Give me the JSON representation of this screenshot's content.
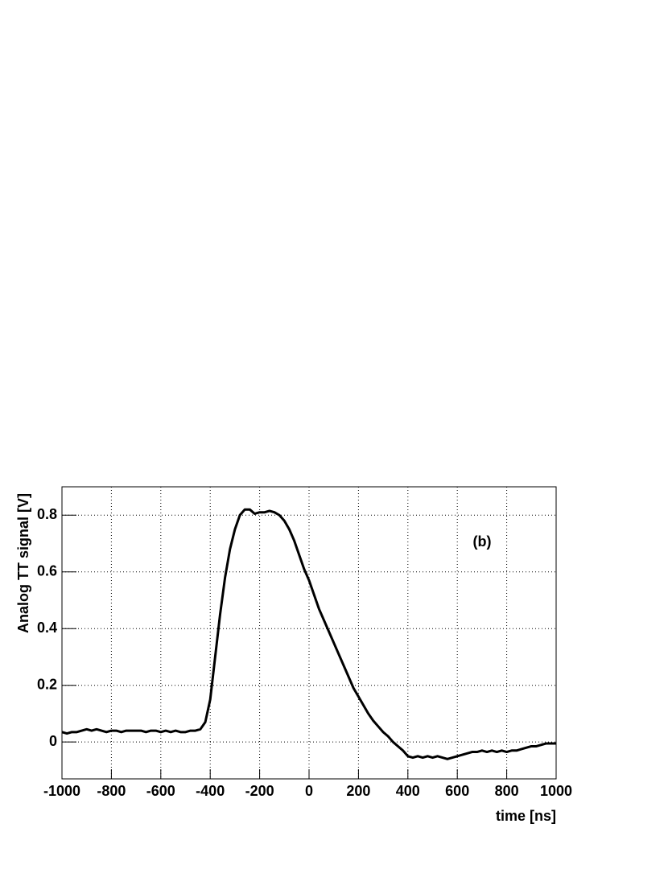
{
  "chart_data": {
    "type": "line",
    "xlabel": "time [ns]",
    "ylabel": "Analog TT signal [V]",
    "annotation": "(b)",
    "x": [
      -1000,
      -980,
      -960,
      -940,
      -920,
      -900,
      -880,
      -860,
      -840,
      -820,
      -800,
      -780,
      -760,
      -740,
      -720,
      -700,
      -680,
      -660,
      -640,
      -620,
      -600,
      -580,
      -560,
      -540,
      -520,
      -500,
      -480,
      -460,
      -440,
      -420,
      -400,
      -380,
      -360,
      -340,
      -320,
      -300,
      -280,
      -260,
      -240,
      -220,
      -200,
      -180,
      -160,
      -140,
      -120,
      -100,
      -80,
      -60,
      -40,
      -20,
      0,
      20,
      40,
      60,
      80,
      100,
      120,
      140,
      160,
      180,
      200,
      220,
      240,
      260,
      280,
      300,
      320,
      340,
      360,
      380,
      400,
      420,
      440,
      460,
      480,
      500,
      520,
      540,
      560,
      580,
      600,
      620,
      640,
      660,
      680,
      700,
      720,
      740,
      760,
      780,
      800,
      820,
      840,
      860,
      880,
      900,
      920,
      940,
      960,
      980,
      1000
    ],
    "series": [
      {
        "color": "#000000",
        "values": [
          0.035,
          0.03,
          0.035,
          0.035,
          0.04,
          0.045,
          0.04,
          0.045,
          0.04,
          0.035,
          0.04,
          0.04,
          0.035,
          0.04,
          0.04,
          0.04,
          0.04,
          0.035,
          0.04,
          0.04,
          0.035,
          0.04,
          0.035,
          0.04,
          0.035,
          0.035,
          0.04,
          0.04,
          0.045,
          0.07,
          0.15,
          0.3,
          0.45,
          0.58,
          0.68,
          0.75,
          0.8,
          0.82,
          0.82,
          0.805,
          0.81,
          0.81,
          0.815,
          0.81,
          0.8,
          0.78,
          0.75,
          0.71,
          0.66,
          0.61,
          0.57,
          0.52,
          0.47,
          0.43,
          0.39,
          0.35,
          0.31,
          0.27,
          0.23,
          0.19,
          0.16,
          0.13,
          0.1,
          0.075,
          0.055,
          0.035,
          0.02,
          0.0,
          -0.015,
          -0.03,
          -0.05,
          -0.055,
          -0.05,
          -0.055,
          -0.05,
          -0.055,
          -0.05,
          -0.055,
          -0.06,
          -0.055,
          -0.05,
          -0.045,
          -0.04,
          -0.035,
          -0.035,
          -0.03,
          -0.035,
          -0.03,
          -0.035,
          -0.03,
          -0.035,
          -0.03,
          -0.03,
          -0.025,
          -0.02,
          -0.015,
          -0.015,
          -0.01,
          -0.005,
          -0.005,
          -0.005
        ]
      }
    ],
    "xlim": [
      -1000,
      1000
    ],
    "xticks": [
      -1000,
      -800,
      -600,
      -400,
      -200,
      0,
      200,
      400,
      600,
      800,
      1000
    ],
    "ylim": [
      -0.13,
      0.9
    ],
    "yticks": [
      0,
      0.2,
      0.4,
      0.6,
      0.8
    ],
    "grid": true
  }
}
